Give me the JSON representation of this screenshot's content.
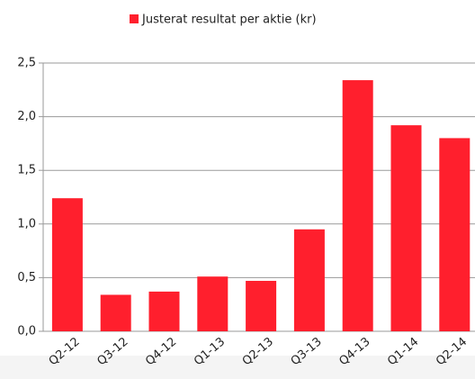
{
  "chart_data": {
    "type": "bar",
    "series": [
      {
        "name": "Justerat resultat per aktie (kr)",
        "color": "#ff1f2d",
        "values": [
          1.24,
          0.34,
          0.37,
          0.51,
          0.47,
          0.95,
          2.34,
          1.92,
          1.8
        ]
      }
    ],
    "categories": [
      "Q2-12",
      "Q3-12",
      "Q4-12",
      "Q1-13",
      "Q2-13",
      "Q3-13",
      "Q4-13",
      "Q1-14",
      "Q2-14"
    ],
    "ylim": [
      0,
      2.5
    ],
    "yticks": [
      {
        "value": 0,
        "label": "0,0"
      },
      {
        "value": 0.5,
        "label": "0,5"
      },
      {
        "value": 1,
        "label": "1,0"
      },
      {
        "value": 1.5,
        "label": "1,5"
      },
      {
        "value": 2,
        "label": "2,0"
      },
      {
        "value": 2.5,
        "label": "2,5"
      }
    ],
    "grid": true,
    "legend": "top"
  }
}
